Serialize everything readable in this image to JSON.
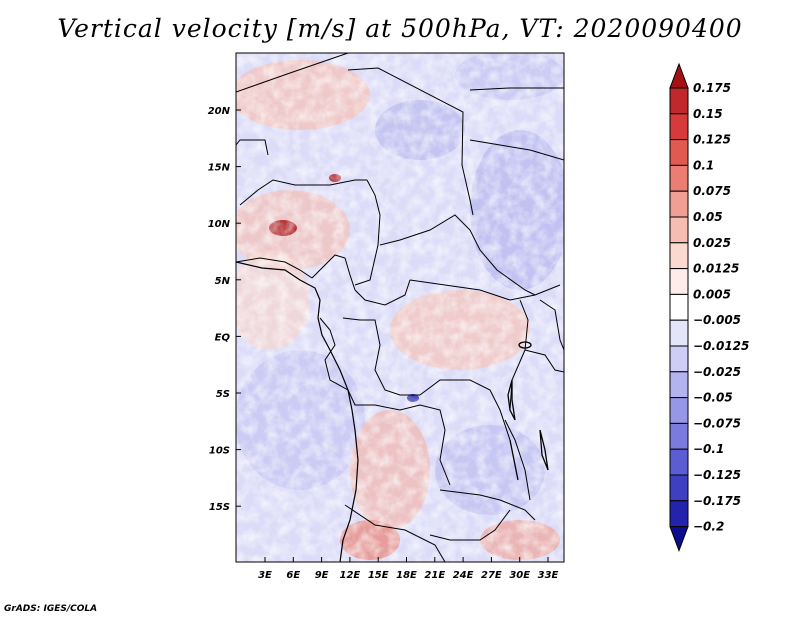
{
  "title": "Vertical velocity [m/s] at 500hPa, VT: 2020090400",
  "footer": "GrADS: IGES/COLA",
  "map": {
    "lon_ticks": [
      "3E",
      "6E",
      "9E",
      "12E",
      "15E",
      "18E",
      "21E",
      "24E",
      "27E",
      "30E",
      "33E"
    ],
    "lat_ticks": [
      "20N",
      "15N",
      "10N",
      "5N",
      "EQ",
      "5S",
      "10S",
      "15S"
    ]
  },
  "colorbar": {
    "labels": [
      "0.175",
      "0.15",
      "0.125",
      "0.1",
      "0.075",
      "0.05",
      "0.025",
      "0.0125",
      "0.005",
      "−0.005",
      "−0.0125",
      "−0.025",
      "−0.05",
      "−0.075",
      "−0.1",
      "−0.125",
      "−0.175",
      "−0.2"
    ],
    "colors": [
      "#a50f15",
      "#c0282b",
      "#d63a3a",
      "#e05a52",
      "#ea7e72",
      "#f19e94",
      "#f6bdb3",
      "#fbd8d0",
      "#fdecea",
      "#ffffff",
      "#e4e4fb",
      "#cdcdf6",
      "#b3b3f0",
      "#9797e8",
      "#7b7bdf",
      "#5d5dd3",
      "#3f3fc2",
      "#2323ae",
      "#0d0d8f"
    ]
  }
}
